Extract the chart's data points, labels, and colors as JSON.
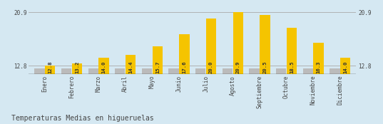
{
  "months": [
    "Enero",
    "Febrero",
    "Marzo",
    "Abril",
    "Mayo",
    "Junio",
    "Julio",
    "Agosto",
    "Septiembre",
    "Octubre",
    "Noviembre",
    "Diciembre"
  ],
  "values": [
    12.8,
    13.2,
    14.0,
    14.4,
    15.7,
    17.6,
    20.0,
    20.9,
    20.5,
    18.5,
    16.3,
    14.0
  ],
  "gray_values": [
    12.4,
    12.4,
    12.4,
    12.4,
    12.4,
    12.4,
    12.4,
    12.4,
    12.4,
    12.4,
    12.4,
    12.4
  ],
  "bar_color": "#F5C400",
  "gray_color": "#BBBBBB",
  "background_color": "#D5E8F2",
  "line_color": "#AAAAAA",
  "axis_line_color": "#333333",
  "text_color": "#444444",
  "title": "Temperaturas Medias en higueruelas",
  "ymin": 11.5,
  "ymax": 22.0,
  "yticks": [
    12.8,
    20.9
  ],
  "hlines": [
    12.8,
    20.9
  ],
  "bar_width": 0.38,
  "value_fontsize": 5.2,
  "label_fontsize": 5.5,
  "title_fontsize": 7.0
}
